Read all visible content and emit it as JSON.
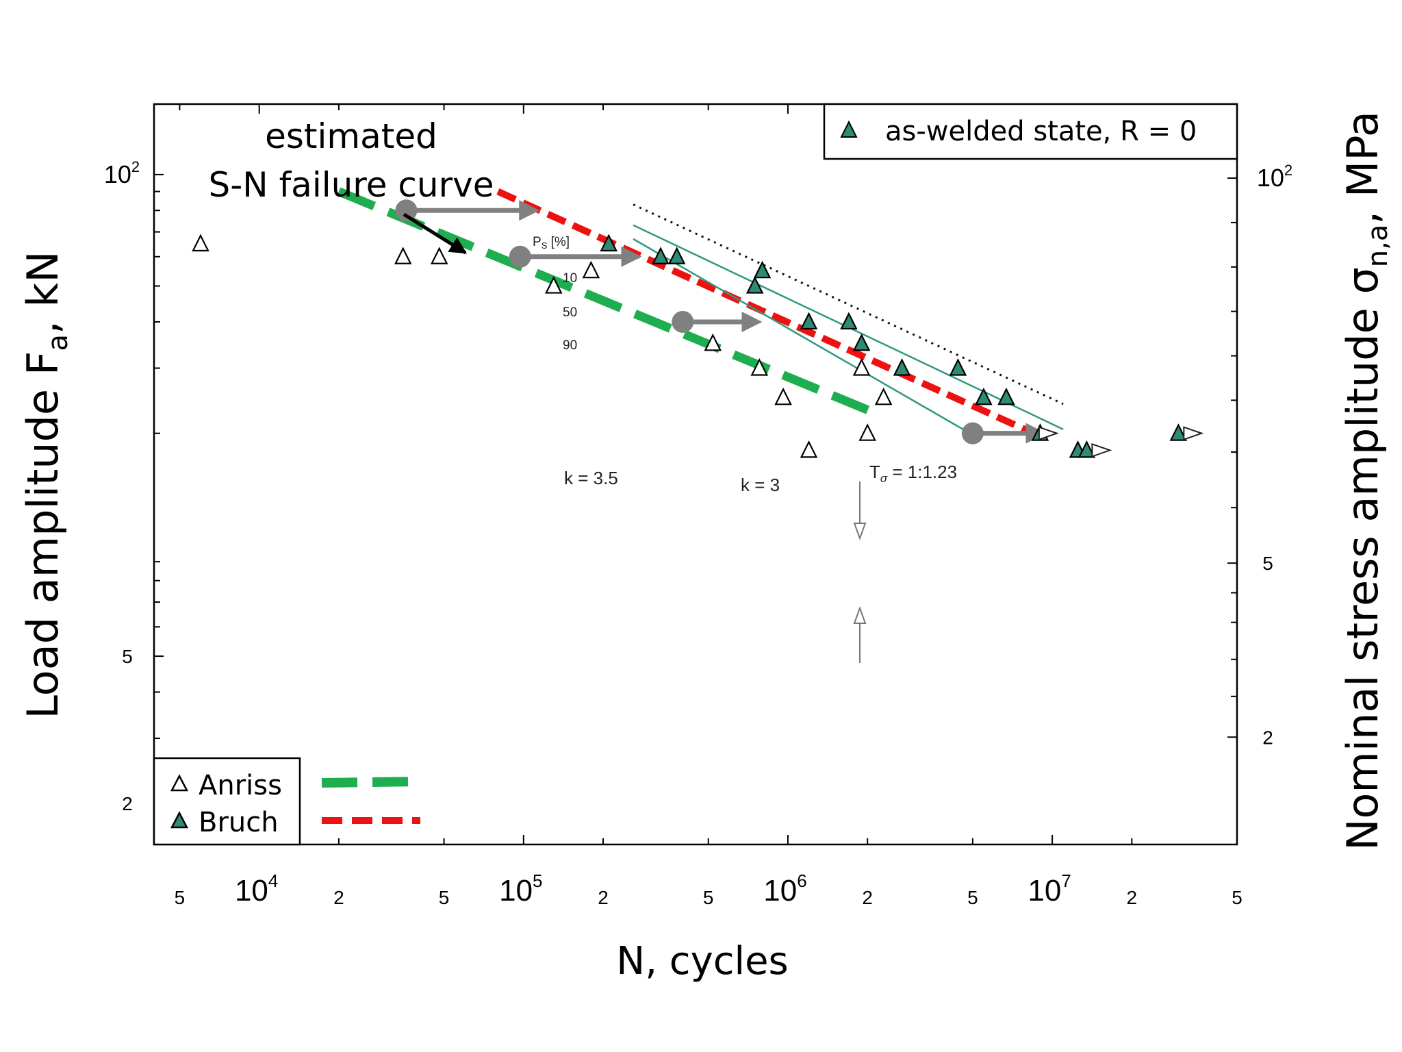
{
  "chart_data": {
    "type": "scatter",
    "x_scale": "log",
    "y_scale": "log",
    "xlim": [
      4000.0,
      50000000.0
    ],
    "ylim": [
      1.55,
      155
    ],
    "xlabel": "N, cycles",
    "ylabel_main": "Load amplitude F",
    "ylabel_sub": "a",
    "ylabel_suffix": ", kN",
    "y2label_main": "Nominal stress amplitude σ",
    "y2label_sub": "n,a",
    "y2label_suffix": ", MPa",
    "x_ticks": [
      {
        "value": 5000,
        "label": "5",
        "major": false
      },
      {
        "value": 10000,
        "label": "10",
        "sup": "4",
        "major": true
      },
      {
        "value": 20000,
        "label": "2",
        "major": false
      },
      {
        "value": 50000,
        "label": "5",
        "major": false
      },
      {
        "value": 100000,
        "label": "10",
        "sup": "5",
        "major": true
      },
      {
        "value": 200000,
        "label": "2",
        "major": false
      },
      {
        "value": 500000,
        "label": "5",
        "major": false
      },
      {
        "value": 1000000,
        "label": "10",
        "sup": "6",
        "major": true
      },
      {
        "value": 2000000,
        "label": "2",
        "major": false
      },
      {
        "value": 5000000,
        "label": "5",
        "major": false
      },
      {
        "value": 10000000,
        "label": "10",
        "sup": "7",
        "major": true
      },
      {
        "value": 20000000,
        "label": "2",
        "major": false
      },
      {
        "value": 50000000,
        "label": "5",
        "major": false
      }
    ],
    "y_ticks": [
      {
        "value": 2,
        "label": "2"
      },
      {
        "value": 5,
        "label": "5"
      },
      {
        "value": 100,
        "label": "10",
        "sup": "2"
      }
    ],
    "y_minor": [
      3,
      4,
      6,
      7,
      8,
      9,
      20,
      30,
      40,
      50,
      60,
      70,
      80,
      90
    ],
    "y2_ticks": [
      {
        "frac": 0.145,
        "label": "2"
      },
      {
        "frac": 0.38,
        "label": "5"
      },
      {
        "frac": 0.9,
        "label": "10",
        "sup": "2"
      }
    ],
    "y2_minor": [
      0.2,
      0.25,
      0.3,
      0.34,
      0.455,
      0.53,
      0.6,
      0.66,
      0.72,
      0.78,
      0.84
    ],
    "series": [
      {
        "name": "Anriss",
        "marker": "triangle-open",
        "points": [
          [
            6000,
            65
          ],
          [
            35000,
            60
          ],
          [
            48000,
            60
          ],
          [
            130000,
            50
          ],
          [
            180000,
            55
          ],
          [
            520000,
            35
          ],
          [
            780000,
            30
          ],
          [
            960000,
            25
          ],
          [
            1200000,
            18
          ],
          [
            2000000,
            20
          ],
          [
            1900000,
            30
          ],
          [
            2300000,
            25
          ]
        ]
      },
      {
        "name": "Bruch",
        "marker": "triangle-filled",
        "points": [
          [
            210000,
            65
          ],
          [
            330000,
            60
          ],
          [
            380000,
            60
          ],
          [
            750000,
            50
          ],
          [
            800000,
            55
          ],
          [
            1200000,
            40
          ],
          [
            1700000,
            40
          ],
          [
            1900000,
            35
          ],
          [
            2700000,
            30
          ],
          [
            4400000,
            30
          ],
          [
            5500000,
            25
          ],
          [
            6700000,
            25
          ],
          [
            9000000,
            20
          ],
          [
            12500000,
            18
          ],
          [
            13500000,
            18
          ],
          [
            30000000,
            20
          ]
        ]
      },
      {
        "name": "runouts",
        "marker": "arrow-right-open",
        "points": [
          [
            8500000,
            20
          ],
          [
            13500000,
            18
          ],
          [
            30000000,
            20
          ]
        ]
      }
    ],
    "lines": [
      {
        "name": "Anriss",
        "style": "green-dashed",
        "points": [
          [
            20000,
            90
          ],
          [
            2200000,
            22.5
          ]
        ]
      },
      {
        "name": "Bruch",
        "style": "red-dashed",
        "points": [
          [
            80000,
            90
          ],
          [
            8500000,
            20
          ]
        ]
      },
      {
        "name": "Ps 10 %",
        "style": "black-dotted",
        "points": [
          [
            260000,
            83
          ],
          [
            11000000,
            24
          ]
        ]
      },
      {
        "name": "Ps 50 %",
        "style": "teal-solid",
        "points": [
          [
            260000,
            73
          ],
          [
            11000000,
            20.5
          ]
        ]
      },
      {
        "name": "Ps 90 %",
        "style": "teal-solid",
        "points": [
          [
            260000,
            67
          ],
          [
            4600000,
            20.5
          ]
        ]
      }
    ],
    "shift_arrows": [
      [
        [
          36000,
          80
        ],
        [
          115000,
          80
        ]
      ],
      [
        [
          97000,
          60
        ],
        [
          280000,
          60
        ]
      ],
      [
        [
          400000,
          40
        ],
        [
          800000,
          40
        ]
      ],
      [
        [
          5000000,
          20
        ],
        [
          9500000,
          20
        ]
      ]
    ],
    "ps_labels": {
      "header": "P",
      "header_sub": "S",
      "header_suffix": " [%]",
      "values": [
        "10",
        "50",
        "90"
      ]
    },
    "annotations": {
      "callout_line1": "estimated",
      "callout_line2": "S-N failure curve",
      "k_left": "k = 3.5",
      "k_right": "k = 3",
      "t_sigma_main": "T",
      "t_sigma_sub": "σ",
      "t_sigma_suffix": " = 1:1.23"
    },
    "legend_top": {
      "label": "as-welded state, R = 0",
      "position": "top-right"
    },
    "legend_bottom": {
      "labels": [
        "Anriss",
        "Bruch"
      ],
      "position": "bottom-left"
    },
    "colors": {
      "green_line": "#1fae4f",
      "red_line": "#ee1111",
      "teal_line": "#2e9a7f",
      "marker_fill": "#2e8b74",
      "arrow": "#808080"
    }
  }
}
